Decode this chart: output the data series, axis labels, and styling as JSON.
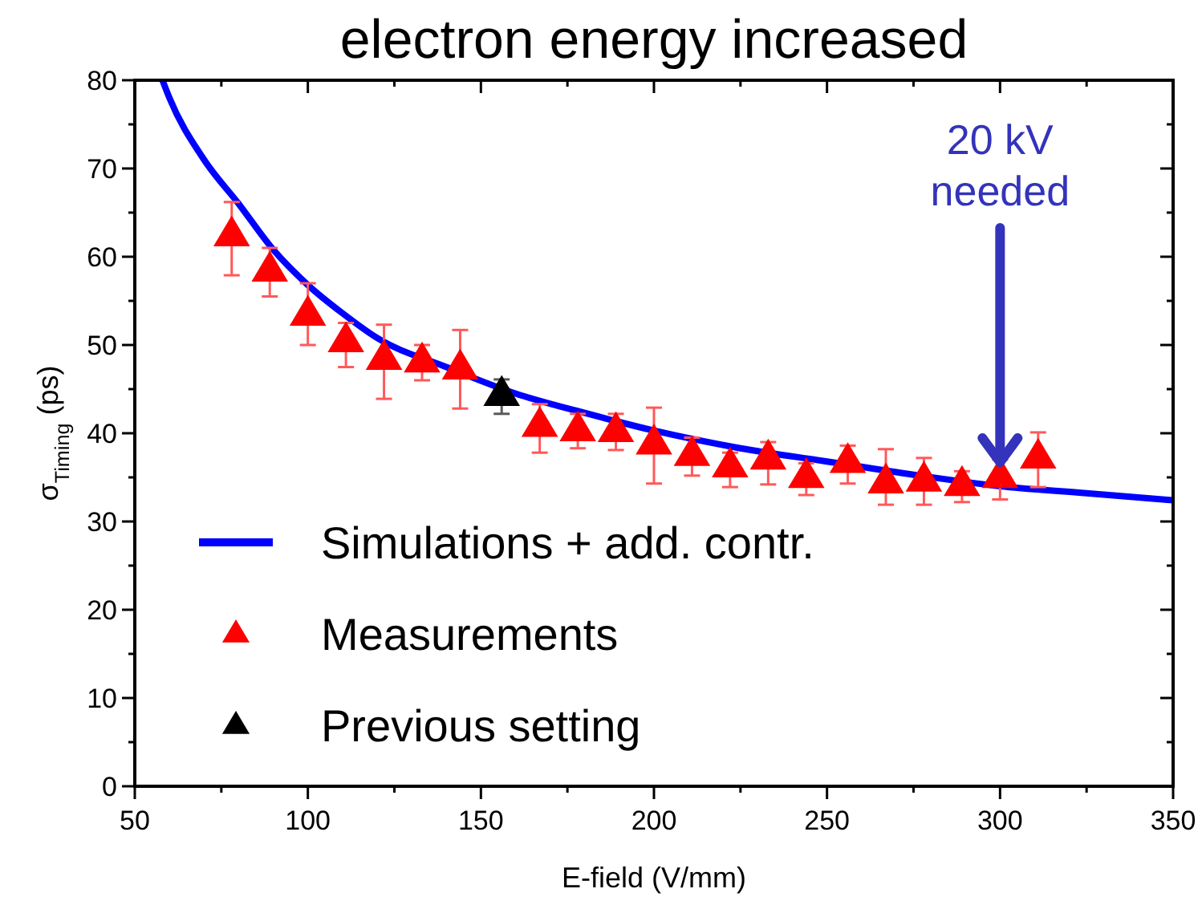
{
  "chart_data": {
    "type": "scatter",
    "title": "electron energy increased",
    "xlabel": "E-field (V/mm)",
    "ylabel": "σ$_{Timing}$ (ps)",
    "xlim": [
      50,
      350
    ],
    "xticks": [
      50,
      {
        "value": 75,
        "label": null
      },
      100,
      {
        "value": 125,
        "label": null
      },
      150,
      {
        "value": 175,
        "label": null
      },
      200,
      {
        "value": 225,
        "label": null
      },
      250,
      {
        "value": 275,
        "label": null
      },
      300,
      {
        "value": 325,
        "label": null
      },
      350
    ],
    "ylim": [
      0,
      80
    ],
    "yticks": [
      0,
      {
        "value": 5,
        "label": null
      },
      10,
      {
        "value": 15,
        "label": null
      },
      20,
      {
        "value": 25,
        "label": null
      },
      30,
      {
        "value": 35,
        "label": null
      },
      40,
      {
        "value": 45,
        "label": null
      },
      50,
      {
        "value": 55,
        "label": null
      },
      60,
      {
        "value": 65,
        "label": null
      },
      70,
      {
        "value": 75,
        "label": null
      },
      80
    ],
    "grid": false,
    "legend": "bottom left",
    "series": [
      {
        "name": "Simulations + add. contr.",
        "type": "line",
        "color": "#0000ff",
        "marker": "none",
        "line_style": "solid",
        "x": [
          58,
          60,
          70,
          80,
          90,
          100,
          110,
          120,
          140,
          160,
          180,
          200,
          225,
          250,
          275,
          300,
          325,
          350
        ],
        "values": [
          80,
          78,
          71,
          66,
          60.8,
          56.8,
          53.6,
          50.8,
          47.5,
          44.5,
          42.3,
          40.3,
          38.3,
          36.8,
          35.3,
          34,
          33.2,
          32.4
        ]
      },
      {
        "name": "Measurements",
        "type": "scatter",
        "color": "#ff0000",
        "marker": "triangle",
        "x": [
          78,
          89,
          100,
          111,
          122,
          133,
          144,
          167,
          178,
          189,
          200,
          211,
          222,
          233,
          244,
          256,
          267,
          278,
          289,
          300,
          311
        ],
        "values": [
          62.5,
          58.5,
          53.5,
          50.5,
          48.5,
          48.2,
          47.4,
          40.9,
          40.4,
          40.3,
          38.9,
          37.6,
          36.3,
          37.2,
          35.1,
          36.8,
          34.5,
          34.7,
          34.2,
          35.1,
          37.3
        ],
        "errors": [
          [
            57.9,
            66.2
          ],
          [
            55.5,
            61
          ],
          [
            50,
            57
          ],
          [
            47.5,
            52.5
          ],
          [
            43.9,
            52.3
          ],
          [
            46,
            50
          ],
          [
            42.8,
            51.7
          ],
          [
            37.8,
            43.3
          ],
          [
            38.3,
            42.2
          ],
          [
            38.1,
            42.2
          ],
          [
            34.3,
            42.9
          ],
          [
            35.2,
            39.5
          ],
          [
            33.9,
            37.8
          ],
          [
            34.2,
            39
          ],
          [
            33,
            36.6
          ],
          [
            34.3,
            38.6
          ],
          [
            31.9,
            38.2
          ],
          [
            31.9,
            37.2
          ],
          [
            32.2,
            35.7
          ],
          [
            32.5,
            37
          ],
          [
            33.9,
            40.1
          ]
        ]
      },
      {
        "name": "Previous setting",
        "type": "scatter",
        "color": "#000000",
        "marker": "triangle",
        "x": [
          156
        ],
        "values": [
          44.4
        ],
        "errors": [
          [
            42.2,
            46.1
          ]
        ]
      }
    ],
    "annotations": [
      {
        "text": "20 kV\nneeded",
        "x": 300,
        "y": 36
      }
    ]
  }
}
